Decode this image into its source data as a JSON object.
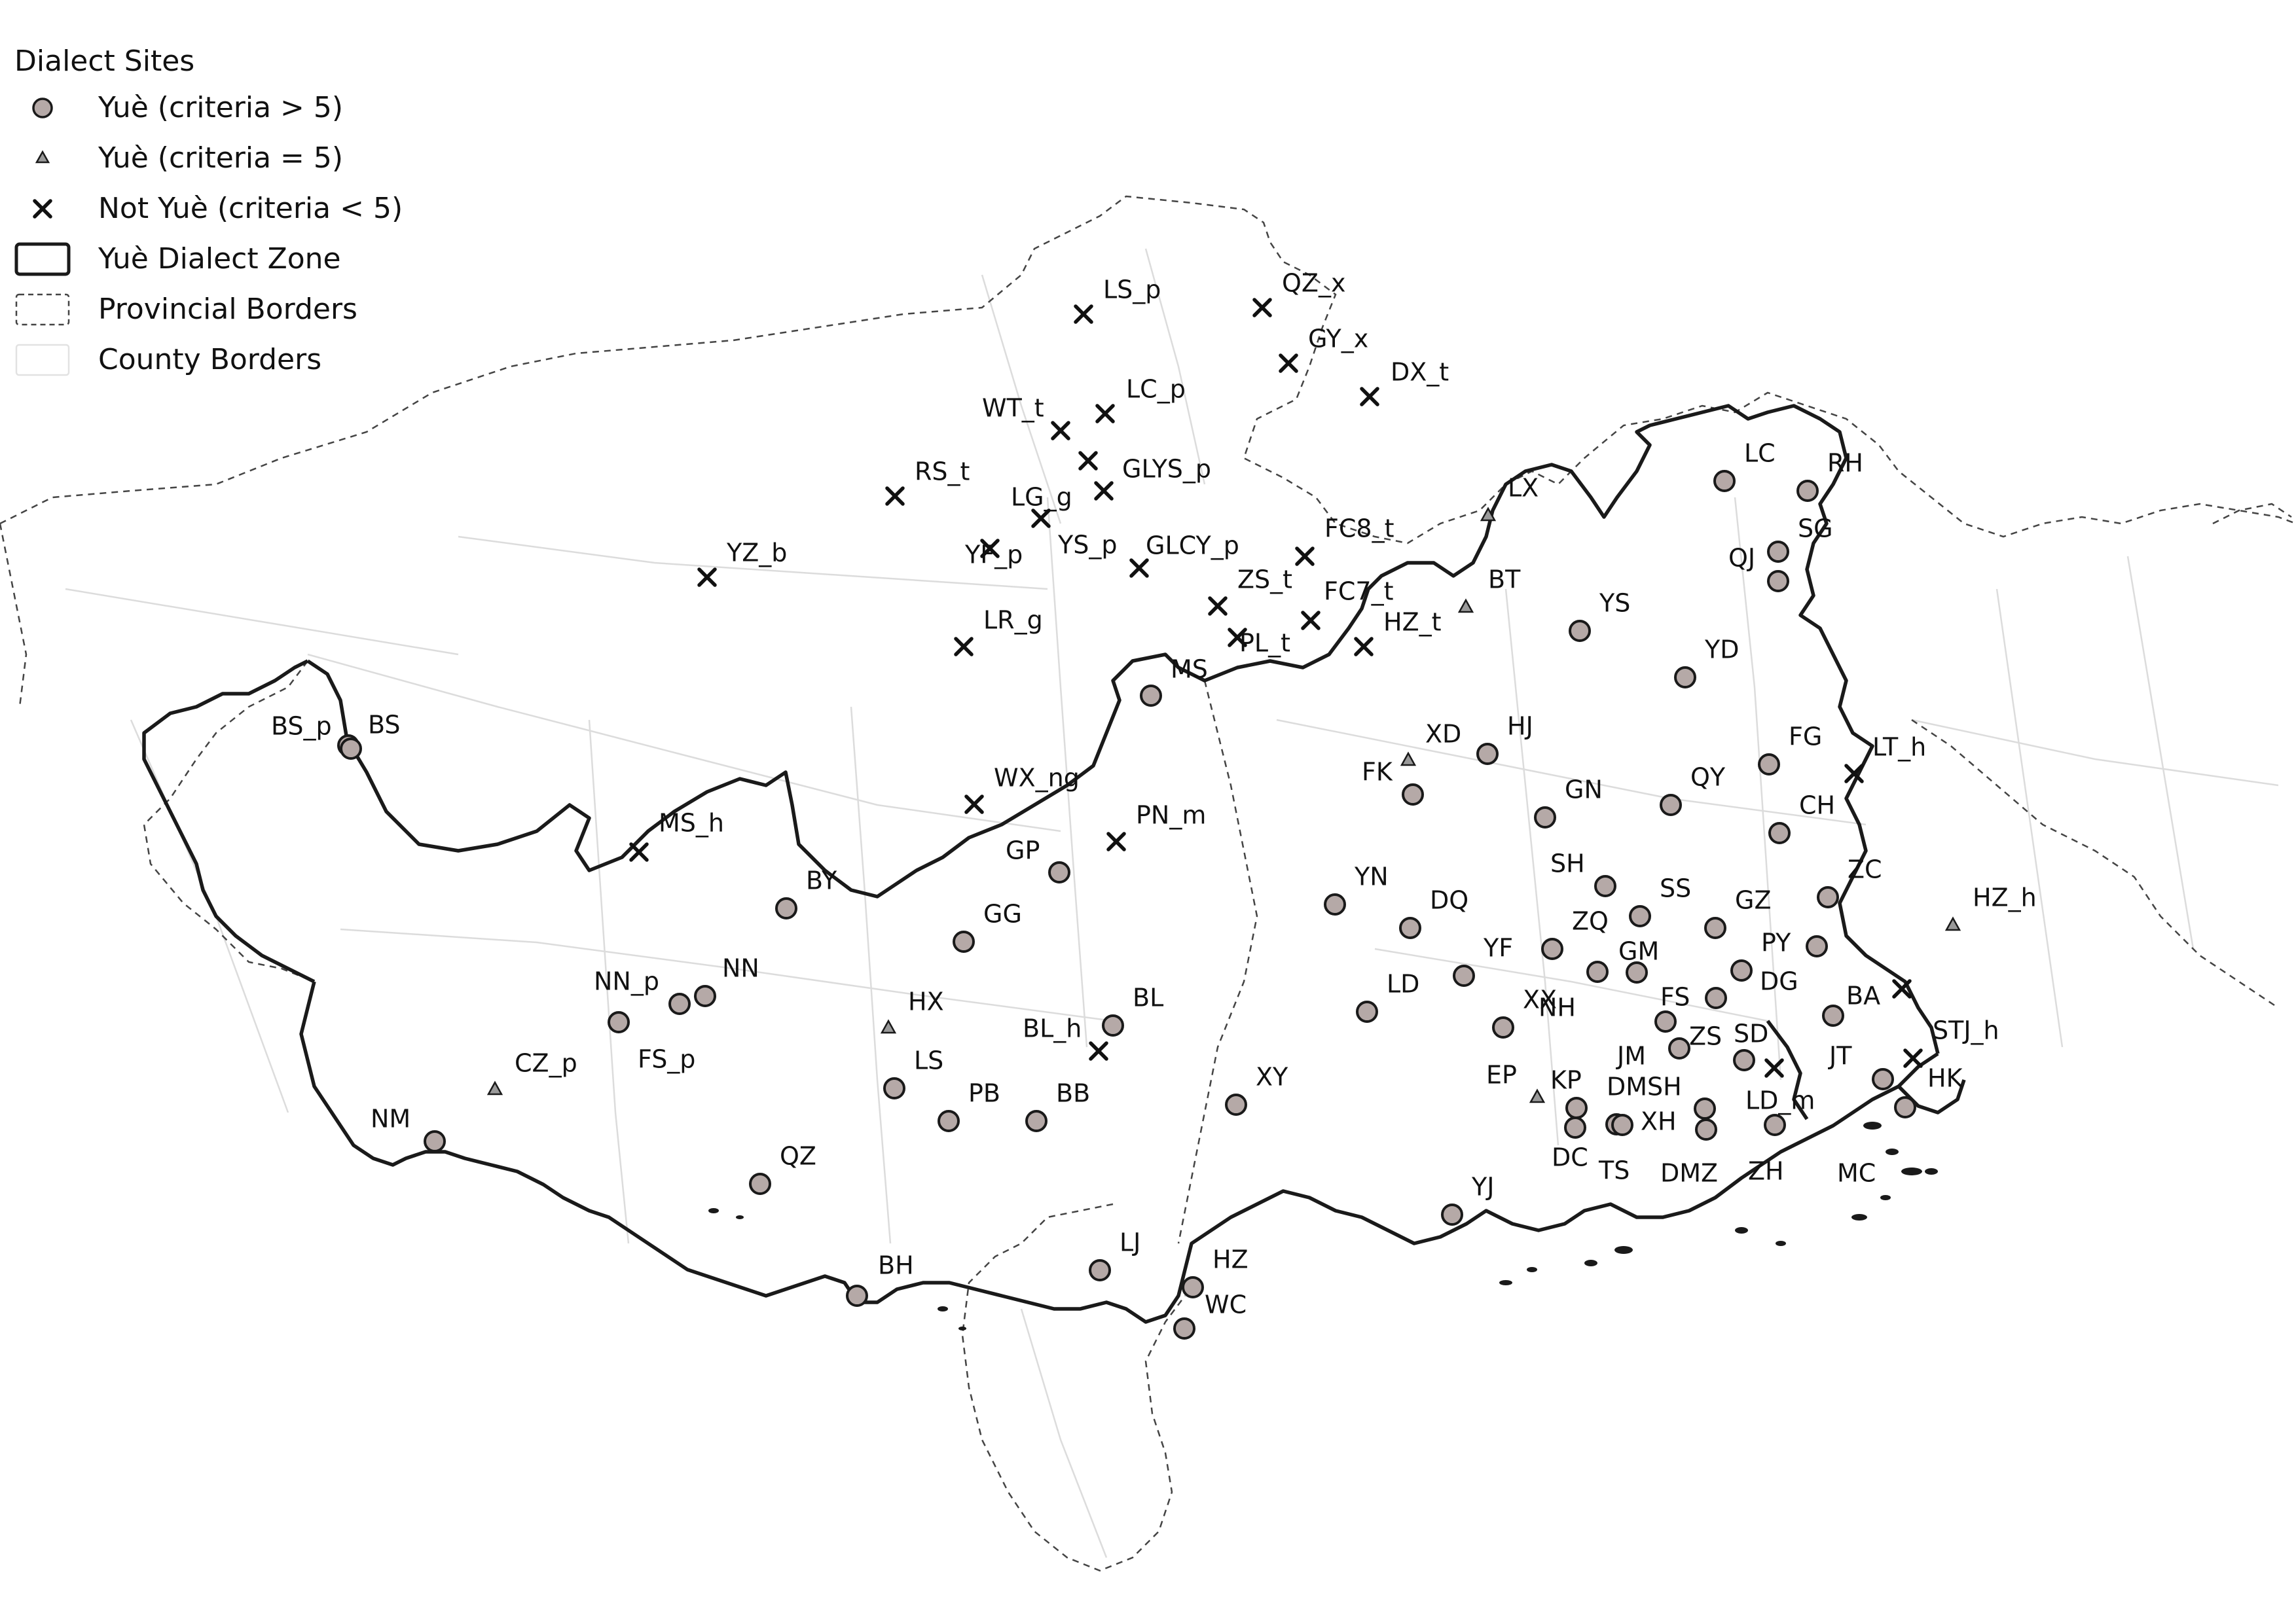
{
  "legend": {
    "title": "Dialect Sites",
    "items": [
      {
        "label": "Yuè (criteria > 5)",
        "symbol": "circle"
      },
      {
        "label": "Yuè (criteria = 5)",
        "symbol": "triangle"
      },
      {
        "label": "Not Yuè (criteria < 5)",
        "symbol": "cross"
      },
      {
        "label": "Yuè Dialect Zone",
        "symbol": "zone-box"
      },
      {
        "label": "Provincial Borders",
        "symbol": "dashed-box"
      },
      {
        "label": "County Borders",
        "symbol": "light-box"
      }
    ]
  },
  "colors": {
    "circle_fill": "#b5a9a7",
    "circle_stroke": "#1a1a1a",
    "triangle_fill": "#9a9a9a",
    "zone_border": "#1a1a1a",
    "province_border": "#444444",
    "county_border": "#dcdcdc"
  },
  "map": {
    "sites": [
      {
        "name": "LS_p",
        "category": "not_yue"
      },
      {
        "name": "QZ_x",
        "category": "not_yue"
      },
      {
        "name": "GY_x",
        "category": "not_yue"
      },
      {
        "name": "DX_t",
        "category": "not_yue"
      },
      {
        "name": "LC_p",
        "category": "not_yue"
      },
      {
        "name": "WT_t",
        "category": "not_yue"
      },
      {
        "name": "GLYS_p",
        "category": "not_yue"
      },
      {
        "name": "RS_t",
        "category": "not_yue"
      },
      {
        "name": "LG_g",
        "category": "not_yue"
      },
      {
        "name": "YS_p",
        "category": "not_yue"
      },
      {
        "name": "YF_p",
        "category": "not_yue"
      },
      {
        "name": "GLCY_p",
        "category": "not_yue"
      },
      {
        "name": "YZ_b",
        "category": "not_yue"
      },
      {
        "name": "FC8_t",
        "category": "not_yue"
      },
      {
        "name": "ZS_t",
        "category": "not_yue"
      },
      {
        "name": "FC7_t",
        "category": "not_yue"
      },
      {
        "name": "PL_t",
        "category": "not_yue"
      },
      {
        "name": "HZ_t",
        "category": "not_yue"
      },
      {
        "name": "LR_g",
        "category": "not_yue"
      },
      {
        "name": "WX_ng",
        "category": "not_yue"
      },
      {
        "name": "PN_m",
        "category": "not_yue"
      },
      {
        "name": "MS_h",
        "category": "not_yue"
      },
      {
        "name": "BL_h",
        "category": "not_yue"
      },
      {
        "name": "LT_h",
        "category": "not_yue"
      },
      {
        "name": "BA",
        "category": "not_yue"
      },
      {
        "name": "STJ_h",
        "category": "not_yue"
      },
      {
        "name": "LD_m",
        "category": "not_yue"
      },
      {
        "name": "LX",
        "category": "yue_eq5"
      },
      {
        "name": "BT",
        "category": "yue_eq5"
      },
      {
        "name": "XD",
        "category": "yue_eq5"
      },
      {
        "name": "HX",
        "category": "yue_eq5"
      },
      {
        "name": "CZ_p",
        "category": "yue_eq5"
      },
      {
        "name": "EP",
        "category": "yue_eq5"
      },
      {
        "name": "HZ_h",
        "category": "yue_eq5"
      },
      {
        "name": "MS",
        "category": "yue_gt5"
      },
      {
        "name": "BS_p",
        "category": "yue_gt5"
      },
      {
        "name": "BS",
        "category": "yue_gt5"
      },
      {
        "name": "GP",
        "category": "yue_gt5"
      },
      {
        "name": "BY",
        "category": "yue_gt5"
      },
      {
        "name": "GG",
        "category": "yue_gt5"
      },
      {
        "name": "NN_p",
        "category": "yue_gt5"
      },
      {
        "name": "NN",
        "category": "yue_gt5"
      },
      {
        "name": "FS_p",
        "category": "yue_gt5"
      },
      {
        "name": "NM",
        "category": "yue_gt5"
      },
      {
        "name": "BL",
        "category": "yue_gt5"
      },
      {
        "name": "LS",
        "category": "yue_gt5"
      },
      {
        "name": "PB",
        "category": "yue_gt5"
      },
      {
        "name": "BB",
        "category": "yue_gt5"
      },
      {
        "name": "QZ",
        "category": "yue_gt5"
      },
      {
        "name": "BH",
        "category": "yue_gt5"
      },
      {
        "name": "LJ",
        "category": "yue_gt5"
      },
      {
        "name": "HZ",
        "category": "yue_gt5"
      },
      {
        "name": "WC",
        "category": "yue_gt5"
      },
      {
        "name": "XY",
        "category": "yue_gt5"
      },
      {
        "name": "YJ",
        "category": "yue_gt5"
      },
      {
        "name": "FK",
        "category": "yue_gt5"
      },
      {
        "name": "HJ",
        "category": "yue_gt5"
      },
      {
        "name": "YS",
        "category": "yue_gt5"
      },
      {
        "name": "LC",
        "category": "yue_gt5"
      },
      {
        "name": "RH",
        "category": "yue_gt5"
      },
      {
        "name": "QJ",
        "category": "yue_gt5"
      },
      {
        "name": "SG",
        "category": "yue_gt5"
      },
      {
        "name": "YD",
        "category": "yue_gt5"
      },
      {
        "name": "GN",
        "category": "yue_gt5"
      },
      {
        "name": "QY",
        "category": "yue_gt5"
      },
      {
        "name": "FG",
        "category": "yue_gt5"
      },
      {
        "name": "CH",
        "category": "yue_gt5"
      },
      {
        "name": "YN",
        "category": "yue_gt5"
      },
      {
        "name": "DQ",
        "category": "yue_gt5"
      },
      {
        "name": "SH",
        "category": "yue_gt5"
      },
      {
        "name": "SS",
        "category": "yue_gt5"
      },
      {
        "name": "GZ",
        "category": "yue_gt5"
      },
      {
        "name": "ZC",
        "category": "yue_gt5"
      },
      {
        "name": "YF",
        "category": "yue_gt5"
      },
      {
        "name": "ZQ",
        "category": "yue_gt5"
      },
      {
        "name": "GM",
        "category": "yue_gt5"
      },
      {
        "name": "PY",
        "category": "yue_gt5"
      },
      {
        "name": "DG",
        "category": "yue_gt5"
      },
      {
        "name": "LD",
        "category": "yue_gt5"
      },
      {
        "name": "NH",
        "category": "yue_gt5"
      },
      {
        "name": "FS",
        "category": "yue_gt5"
      },
      {
        "name": "XX",
        "category": "yue_gt5"
      },
      {
        "name": "JM",
        "category": "yue_gt5"
      },
      {
        "name": "ZS",
        "category": "yue_gt5"
      },
      {
        "name": "SD",
        "category": "yue_gt5"
      },
      {
        "name": "JT",
        "category": "yue_gt5"
      },
      {
        "name": "HK",
        "category": "yue_gt5"
      },
      {
        "name": "KP",
        "category": "yue_gt5"
      },
      {
        "name": "DMSH",
        "category": "yue_gt5"
      },
      {
        "name": "XH",
        "category": "yue_gt5"
      },
      {
        "name": "DC",
        "category": "yue_gt5"
      },
      {
        "name": "TS",
        "category": "yue_gt5"
      },
      {
        "name": "DMZ",
        "category": "yue_gt5"
      },
      {
        "name": "ZH",
        "category": "yue_gt5"
      },
      {
        "name": "MC",
        "category": "yue_gt5"
      }
    ]
  }
}
